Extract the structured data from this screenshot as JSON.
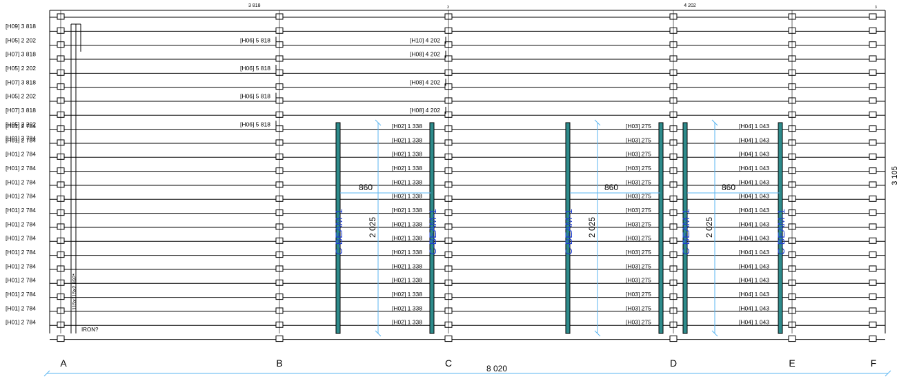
{
  "drawing": {
    "top_dims": {
      "span1": "3 818",
      "span2": "4 202",
      "small_left": "3",
      "small_right": "3"
    },
    "rows": [
      {
        "left": "[H09] 3 818",
        "mid": "",
        "right": ""
      },
      {
        "left": "[H05] 2 202",
        "mid": "[H06] 5 818",
        "right": "[H10] 4 202"
      },
      {
        "left": "[H07] 3 818",
        "mid": "",
        "right": "[H08] 4 202"
      },
      {
        "left": "[H05] 2 202",
        "mid": "[H06] 5 818",
        "right": ""
      },
      {
        "left": "[H07] 3 818",
        "mid": "",
        "right": "[H08] 4 202"
      },
      {
        "left": "[H05] 2 202",
        "mid": "[H06] 5 818",
        "right": ""
      },
      {
        "left": "[H07] 3 818",
        "mid": "",
        "right": "[H08] 4 202"
      },
      {
        "left": "[H05] 2 202",
        "mid": "[H06] 5 818",
        "right": ""
      },
      {
        "left": "[H01] 2 784",
        "mid": "",
        "right": ""
      }
    ],
    "lower_rows": {
      "count": 15,
      "left_label": "[H01] 2 784",
      "c_label": "[H02] 1 338",
      "d_label": "[H03] 275",
      "e_label": "[H04] 1 043"
    },
    "beams": [
      "C-BEAM-1",
      "C-BEAM-1",
      "C-BEAM-1",
      "C-BEAM-1",
      "C-BEAM-1"
    ],
    "openings": [
      {
        "width": "860",
        "height": "2 025"
      },
      {
        "width": "860",
        "height": "2 025"
      },
      {
        "width": "860",
        "height": "2 025"
      }
    ],
    "column_note": "115x115x2 892*",
    "iron_note": "IRON?",
    "right_dim": "3 105",
    "grid_labels": [
      "A",
      "B",
      "C",
      "D",
      "E",
      "F"
    ],
    "overall_dim": "8 020"
  },
  "colors": {
    "line": "#000000",
    "dim": "#5ab4f0",
    "beam": "#2e8b8b",
    "beam_text": "#1f3fd0"
  }
}
